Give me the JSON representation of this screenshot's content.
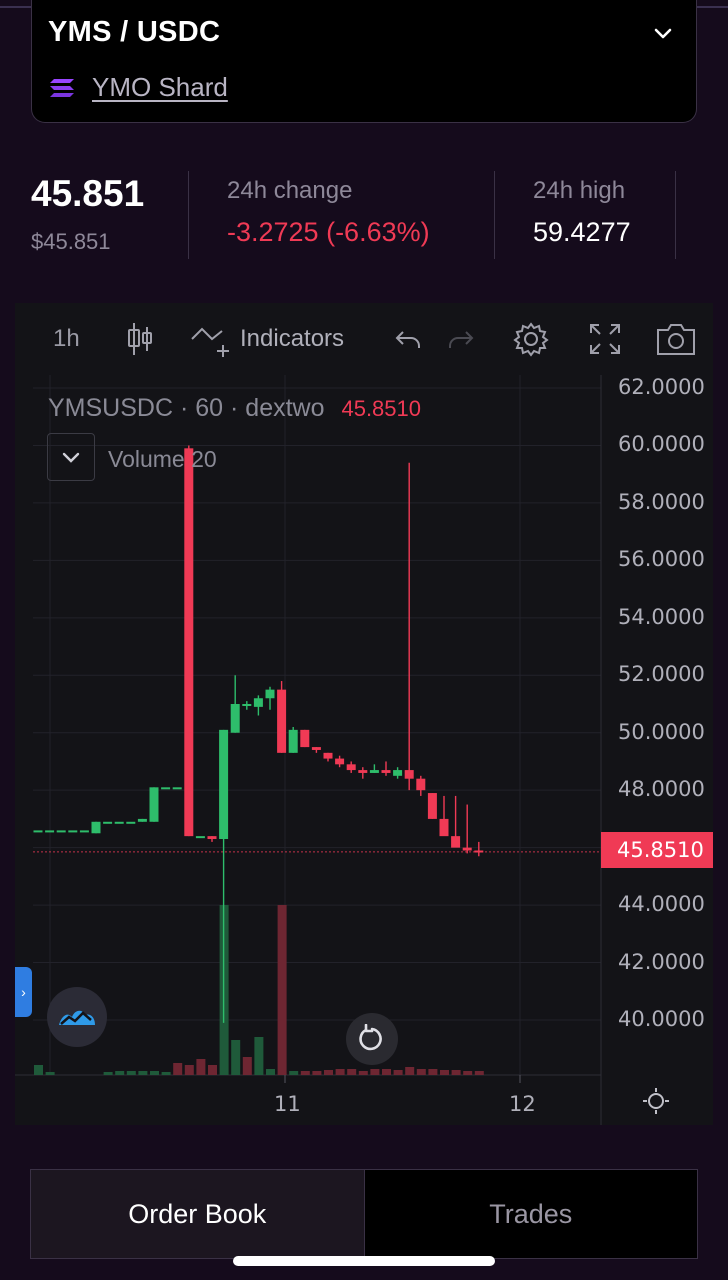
{
  "market": {
    "pair": "YMS / USDC",
    "shard_name": "YMO Shard",
    "icon": "chevron-down-icon"
  },
  "stats": {
    "price": "45.851",
    "price_usd": "$45.851",
    "change_label": "24h change",
    "change_value": "-3.2725 (-6.63%)",
    "high_label": "24h high",
    "high_value": "59.4277"
  },
  "toolbar": {
    "interval": "1h",
    "indicators_label": "Indicators"
  },
  "chart": {
    "symbol": "YMSUSDC",
    "resolution": "60",
    "exchange": "dextwo",
    "separator": "·",
    "last_price": "45.8510",
    "volume_label": "Volume 20",
    "price_tag": "45.8510",
    "colors": {
      "up": "#2ebd6b",
      "down": "#f03a55"
    }
  },
  "chart_data": {
    "type": "candlestick",
    "y_ticks": [
      "62.0000",
      "60.0000",
      "58.0000",
      "56.0000",
      "54.0000",
      "52.0000",
      "50.0000",
      "48.0000",
      "44.0000",
      "42.0000",
      "40.0000"
    ],
    "x_ticks": [
      "11",
      "12"
    ],
    "ylim": [
      38.2,
      62.5
    ],
    "last_price": 45.851,
    "candles": [
      {
        "o": 46.6,
        "h": 46.6,
        "l": 46.6,
        "c": 46.6
      },
      {
        "o": 46.6,
        "h": 46.6,
        "l": 46.6,
        "c": 46.6
      },
      {
        "o": 46.6,
        "h": 46.6,
        "l": 46.6,
        "c": 46.6
      },
      {
        "o": 46.6,
        "h": 46.6,
        "l": 46.6,
        "c": 46.6
      },
      {
        "o": 46.6,
        "h": 46.6,
        "l": 46.6,
        "c": 46.6
      },
      {
        "o": 46.5,
        "h": 46.9,
        "l": 46.5,
        "c": 46.9
      },
      {
        "o": 46.9,
        "h": 46.9,
        "l": 46.9,
        "c": 46.9
      },
      {
        "o": 46.9,
        "h": 46.9,
        "l": 46.9,
        "c": 46.9
      },
      {
        "o": 46.9,
        "h": 46.9,
        "l": 46.9,
        "c": 46.9
      },
      {
        "o": 46.9,
        "h": 47.0,
        "l": 46.9,
        "c": 47.0
      },
      {
        "o": 46.9,
        "h": 48.1,
        "l": 46.9,
        "c": 48.1
      },
      {
        "o": 48.1,
        "h": 48.1,
        "l": 48.1,
        "c": 48.1
      },
      {
        "o": 48.1,
        "h": 48.1,
        "l": 48.1,
        "c": 48.1
      },
      {
        "o": 59.9,
        "h": 60.0,
        "l": 46.4,
        "c": 46.4
      },
      {
        "o": 46.4,
        "h": 46.4,
        "l": 46.4,
        "c": 46.4
      },
      {
        "o": 46.4,
        "h": 46.4,
        "l": 46.2,
        "c": 46.3
      },
      {
        "o": 46.3,
        "h": 50.1,
        "l": 39.9,
        "c": 50.1
      },
      {
        "o": 50.0,
        "h": 52.0,
        "l": 50.0,
        "c": 51.0
      },
      {
        "o": 51.0,
        "h": 51.1,
        "l": 50.8,
        "c": 51.0
      },
      {
        "o": 50.9,
        "h": 51.3,
        "l": 50.6,
        "c": 51.2
      },
      {
        "o": 51.2,
        "h": 51.6,
        "l": 50.8,
        "c": 51.5
      },
      {
        "o": 51.5,
        "h": 51.8,
        "l": 49.3,
        "c": 49.3
      },
      {
        "o": 49.3,
        "h": 50.2,
        "l": 49.3,
        "c": 50.1
      },
      {
        "o": 50.1,
        "h": 50.1,
        "l": 49.5,
        "c": 49.5
      },
      {
        "o": 49.5,
        "h": 49.5,
        "l": 49.3,
        "c": 49.4
      },
      {
        "o": 49.3,
        "h": 49.3,
        "l": 49.0,
        "c": 49.1
      },
      {
        "o": 49.1,
        "h": 49.2,
        "l": 48.8,
        "c": 48.9
      },
      {
        "o": 48.9,
        "h": 49.0,
        "l": 48.6,
        "c": 48.7
      },
      {
        "o": 48.7,
        "h": 48.8,
        "l": 48.4,
        "c": 48.6
      },
      {
        "o": 48.6,
        "h": 48.9,
        "l": 48.6,
        "c": 48.7
      },
      {
        "o": 48.7,
        "h": 49.0,
        "l": 48.5,
        "c": 48.6
      },
      {
        "o": 48.5,
        "h": 48.8,
        "l": 48.4,
        "c": 48.7
      },
      {
        "o": 48.7,
        "h": 59.4,
        "l": 48.0,
        "c": 48.4
      },
      {
        "o": 48.4,
        "h": 48.5,
        "l": 47.8,
        "c": 48.0
      },
      {
        "o": 47.9,
        "h": 47.9,
        "l": 47.0,
        "c": 47.0
      },
      {
        "o": 47.0,
        "h": 47.8,
        "l": 46.5,
        "c": 46.4
      },
      {
        "o": 46.4,
        "h": 47.8,
        "l": 46.2,
        "c": 46.0
      },
      {
        "o": 46.0,
        "h": 47.5,
        "l": 45.8,
        "c": 45.9
      },
      {
        "o": 45.9,
        "h": 46.2,
        "l": 45.7,
        "c": 45.85
      }
    ],
    "volumes": [
      1,
      1,
      0,
      0,
      0,
      0,
      0,
      0,
      0,
      0,
      0,
      0,
      0,
      0.5,
      1,
      0.5,
      2,
      0.5,
      0,
      0,
      1,
      6,
      0.5,
      0.5,
      0.5,
      0.5,
      1,
      1,
      0.3,
      0.5,
      1,
      0.5,
      1,
      0.5,
      0.5,
      0.4,
      0.3,
      0.3,
      0.2
    ],
    "volume_overlay": [
      {
        "i": 0,
        "v": 1.0,
        "up": true
      },
      {
        "i": 1,
        "v": 0.3,
        "up": true
      },
      {
        "i": 6,
        "v": 0.3,
        "up": true
      },
      {
        "i": 7,
        "v": 0.4,
        "up": true
      },
      {
        "i": 8,
        "v": 0.4,
        "up": true
      },
      {
        "i": 9,
        "v": 0.4,
        "up": true
      },
      {
        "i": 10,
        "v": 0.4,
        "up": true
      },
      {
        "i": 11,
        "v": 0.3,
        "up": true
      },
      {
        "i": 12,
        "v": 1.2,
        "up": false
      },
      {
        "i": 13,
        "v": 1.0,
        "up": false
      },
      {
        "i": 14,
        "v": 1.6,
        "up": false
      },
      {
        "i": 15,
        "v": 1.0,
        "up": false
      },
      {
        "i": 16,
        "v": 17.0,
        "up": true
      },
      {
        "i": 17,
        "v": 3.5,
        "up": true
      },
      {
        "i": 18,
        "v": 1.8,
        "up": false
      },
      {
        "i": 19,
        "v": 3.8,
        "up": true
      },
      {
        "i": 20,
        "v": 0.6,
        "up": true
      },
      {
        "i": 21,
        "v": 17.0,
        "up": false
      },
      {
        "i": 22,
        "v": 0.4,
        "up": true
      },
      {
        "i": 23,
        "v": 0.4,
        "up": false
      },
      {
        "i": 24,
        "v": 0.4,
        "up": false
      },
      {
        "i": 25,
        "v": 0.5,
        "up": false
      },
      {
        "i": 26,
        "v": 0.6,
        "up": false
      },
      {
        "i": 27,
        "v": 0.6,
        "up": false
      },
      {
        "i": 28,
        "v": 0.4,
        "up": false
      },
      {
        "i": 29,
        "v": 0.6,
        "up": false
      },
      {
        "i": 30,
        "v": 0.6,
        "up": false
      },
      {
        "i": 31,
        "v": 0.5,
        "up": false
      },
      {
        "i": 32,
        "v": 0.8,
        "up": false
      },
      {
        "i": 33,
        "v": 0.6,
        "up": false
      },
      {
        "i": 34,
        "v": 0.6,
        "up": false
      },
      {
        "i": 35,
        "v": 0.5,
        "up": false
      },
      {
        "i": 36,
        "v": 0.5,
        "up": false
      },
      {
        "i": 37,
        "v": 0.4,
        "up": false
      },
      {
        "i": 38,
        "v": 0.4,
        "up": false
      }
    ]
  },
  "tabs": {
    "order_book": "Order Book",
    "trades": "Trades"
  }
}
